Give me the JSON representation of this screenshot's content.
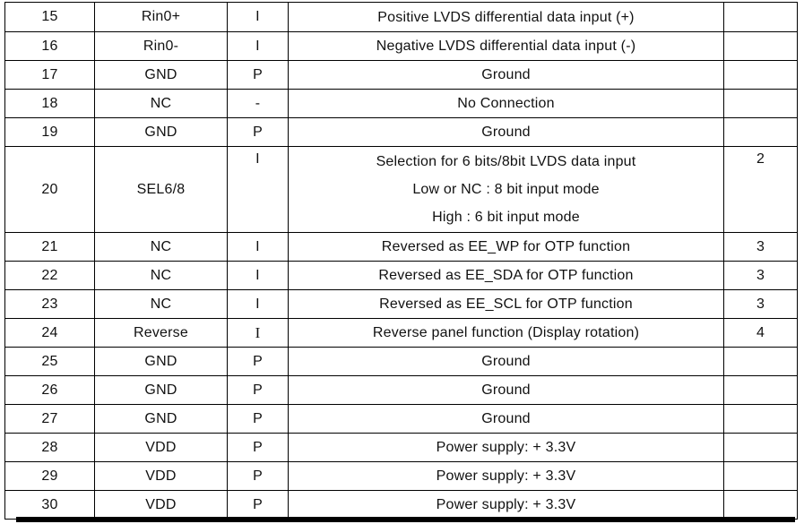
{
  "colors": {
    "background": "#ffffff",
    "table_border": "#000000",
    "text": "#111111",
    "bottom_bar": "#000000"
  },
  "table": {
    "rows": [
      {
        "pin": "15",
        "symbol": "Rin0+",
        "io": "I",
        "desc": [
          "Positive LVDS differential data input (+)"
        ],
        "note": ""
      },
      {
        "pin": "16",
        "symbol": "Rin0-",
        "io": "I",
        "desc": [
          "Negative LVDS differential data input (-)"
        ],
        "note": ""
      },
      {
        "pin": "17",
        "symbol": "GND",
        "io": "P",
        "desc": [
          "Ground"
        ],
        "note": ""
      },
      {
        "pin": "18",
        "symbol": "NC",
        "io": "-",
        "desc": [
          "No Connection"
        ],
        "note": ""
      },
      {
        "pin": "19",
        "symbol": "GND",
        "io": "P",
        "desc": [
          "Ground"
        ],
        "note": ""
      },
      {
        "pin": "20",
        "symbol": "SEL6/8",
        "io": "I",
        "desc": [
          "Selection for 6 bits/8bit LVDS data input",
          "Low or NC : 8 bit input mode",
          "High : 6 bit input mode"
        ],
        "note": "2"
      },
      {
        "pin": "21",
        "symbol": "NC",
        "io": "I",
        "desc": [
          "Reversed as EE_WP for OTP function"
        ],
        "note": "3"
      },
      {
        "pin": "22",
        "symbol": "NC",
        "io": "I",
        "desc": [
          "Reversed as EE_SDA for OTP function"
        ],
        "note": "3"
      },
      {
        "pin": "23",
        "symbol": "NC",
        "io": "I",
        "desc": [
          "Reversed as EE_SCL for OTP function"
        ],
        "note": "3"
      },
      {
        "pin": "24",
        "symbol": "Reverse",
        "io": "I",
        "io_style": "serif",
        "desc": [
          "Reverse panel function (Display rotation)"
        ],
        "note": "4"
      },
      {
        "pin": "25",
        "symbol": "GND",
        "io": "P",
        "desc": [
          "Ground"
        ],
        "note": ""
      },
      {
        "pin": "26",
        "symbol": "GND",
        "io": "P",
        "desc": [
          "Ground"
        ],
        "note": ""
      },
      {
        "pin": "27",
        "symbol": "GND",
        "io": "P",
        "desc": [
          "Ground"
        ],
        "note": ""
      },
      {
        "pin": "28",
        "symbol": "VDD",
        "io": "P",
        "desc": [
          "Power supply: + 3.3V"
        ],
        "note": ""
      },
      {
        "pin": "29",
        "symbol": "VDD",
        "io": "P",
        "desc": [
          "Power supply: + 3.3V"
        ],
        "note": ""
      },
      {
        "pin": "30",
        "symbol": "VDD",
        "io": "P",
        "desc": [
          "Power supply: + 3.3V"
        ],
        "note": ""
      }
    ]
  }
}
